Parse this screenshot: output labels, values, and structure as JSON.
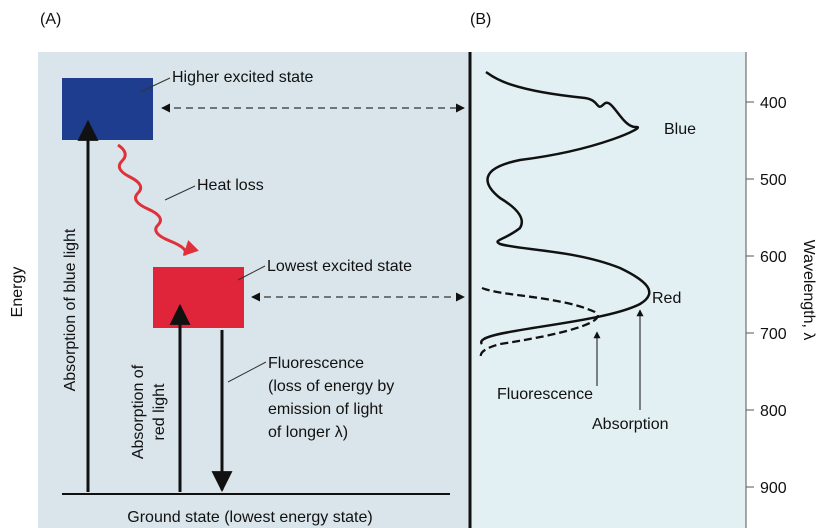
{
  "panel_a": {
    "label": "(A)",
    "energy_axis": "Energy",
    "higher_excited": "Higher excited state",
    "heat_loss": "Heat loss",
    "lowest_excited": "Lowest excited state",
    "absorption_blue": "Absorption of blue light",
    "absorption_red": [
      "Absorption of",
      "red light"
    ],
    "fluorescence": [
      "Fluorescence",
      "(loss of energy by",
      "emission of light",
      "of longer λ)"
    ],
    "ground_state": "Ground state (lowest energy state)"
  },
  "panel_b": {
    "label": "(B)",
    "axis_label": "Wavelength, λ",
    "ticks": [
      400,
      500,
      600,
      700,
      800,
      900
    ],
    "blue": "Blue",
    "red": "Red",
    "fluorescence": "Fluorescence",
    "absorption": "Absorption"
  }
}
